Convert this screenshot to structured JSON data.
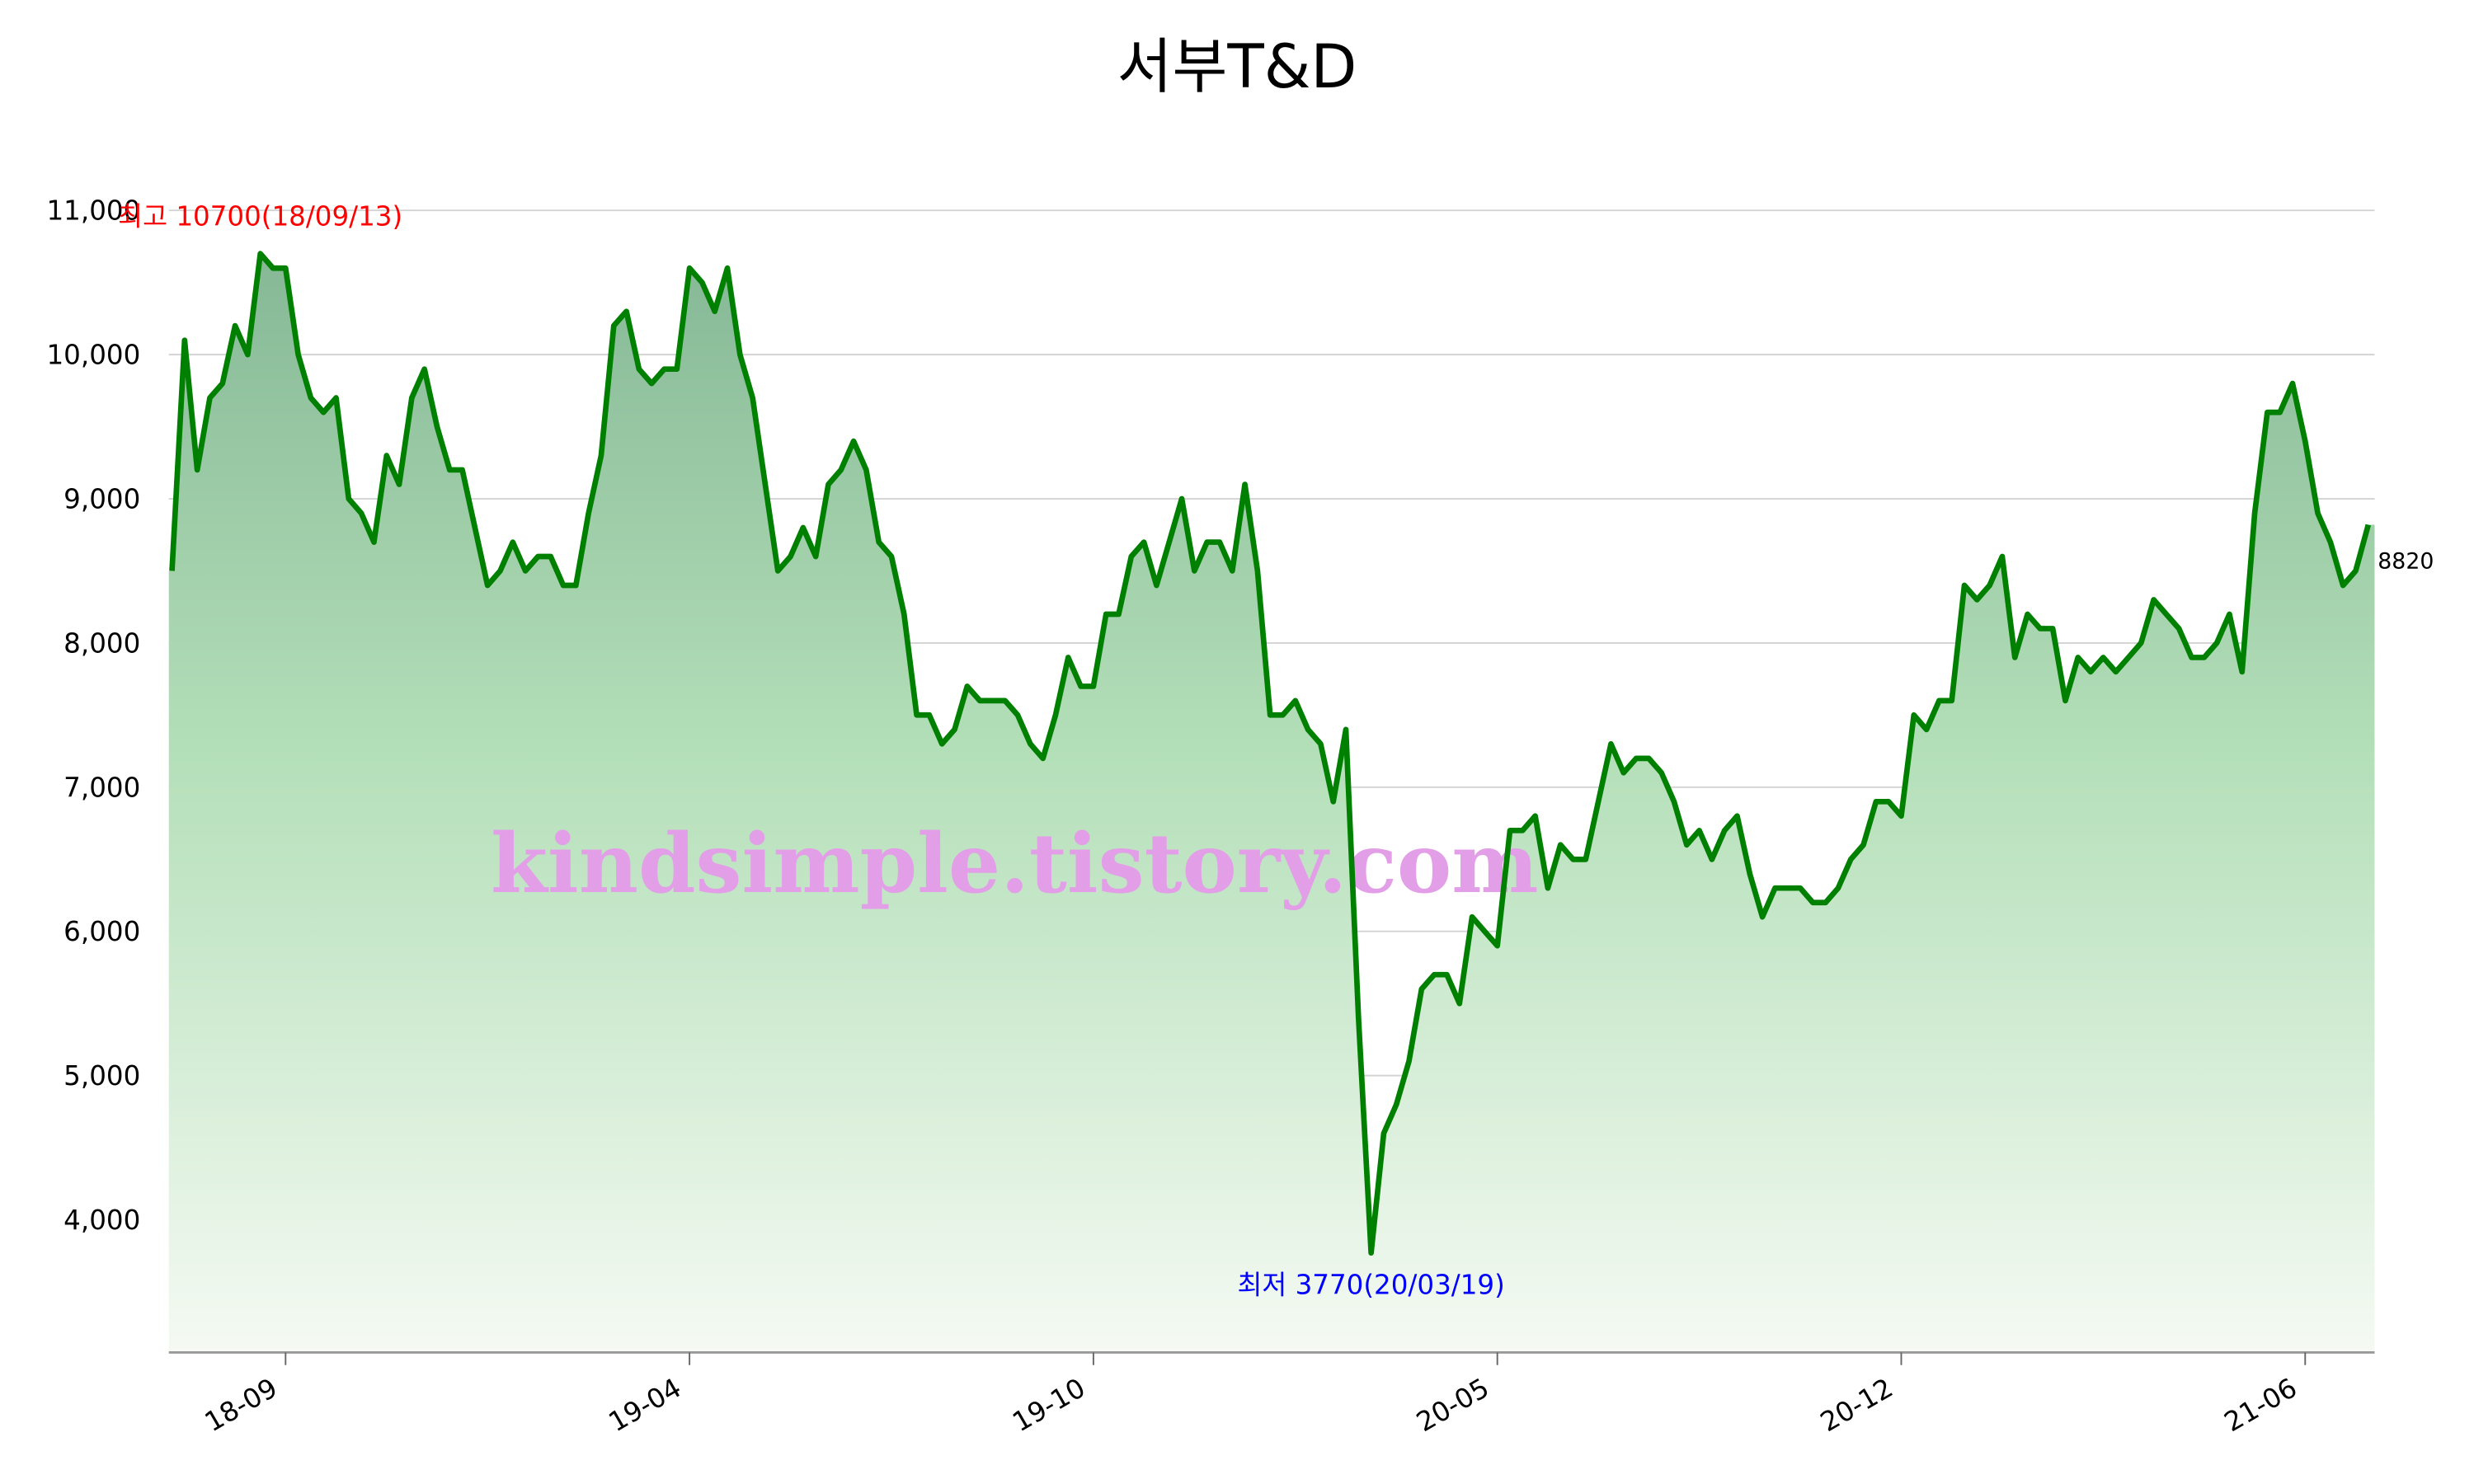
{
  "chart_data": {
    "type": "area-line",
    "title": "서부T&D",
    "watermark": "kindsimple.tistory.com",
    "max_label": "최고 10700(18/09/13)",
    "min_label": "최저 3770(20/03/19)",
    "max_color": "#ff0000",
    "min_color": "#0000ff",
    "categories": [
      null,
      null,
      null,
      null,
      null,
      null,
      null,
      null,
      null,
      "18-09",
      null,
      null,
      null,
      null,
      null,
      null,
      null,
      null,
      null,
      null,
      null,
      null,
      null,
      null,
      null,
      null,
      null,
      null,
      null,
      null,
      null,
      null,
      null,
      null,
      null,
      null,
      null,
      null,
      null,
      null,
      null,
      "19-04",
      null,
      null,
      null,
      null,
      null,
      null,
      null,
      null,
      null,
      null,
      null,
      null,
      null,
      null,
      null,
      null,
      null,
      null,
      null,
      null,
      null,
      null,
      null,
      null,
      null,
      null,
      null,
      null,
      null,
      null,
      null,
      "19-10",
      null,
      null,
      null,
      null,
      null,
      null,
      null,
      null,
      null,
      null,
      null,
      null,
      null,
      null,
      null,
      null,
      null,
      null,
      null,
      null,
      null,
      null,
      null,
      null,
      null,
      null,
      null,
      null,
      null,
      null,
      null,
      "20-05",
      null,
      null,
      null,
      null,
      null,
      null,
      null,
      null,
      null,
      null,
      null,
      null,
      null,
      null,
      null,
      null,
      null,
      null,
      null,
      null,
      null,
      null,
      null,
      null,
      null,
      null,
      null,
      null,
      null,
      null,
      null,
      "20-12",
      null,
      null,
      null,
      null,
      null,
      null,
      null,
      null,
      null,
      null,
      null,
      null,
      null,
      null,
      null,
      null,
      null,
      null,
      null,
      null,
      null,
      null,
      null,
      null,
      null,
      null,
      null,
      null,
      null,
      null,
      null,
      "21-06",
      null,
      null,
      null,
      null,
      null
    ],
    "series": [
      {
        "color": "#008000",
        "values": [
          8500,
          10100,
          9200,
          9700,
          9800,
          10200,
          10000,
          10700,
          10600,
          10600,
          10000,
          9700,
          9600,
          9700,
          9000,
          8900,
          8700,
          9300,
          9100,
          9700,
          9900,
          9500,
          9200,
          9200,
          8800,
          8400,
          8500,
          8700,
          8500,
          8600,
          8600,
          8400,
          8400,
          8900,
          9300,
          10200,
          10300,
          9900,
          9800,
          9900,
          9900,
          10600,
          10500,
          10300,
          10600,
          10000,
          9700,
          9100,
          8500,
          8600,
          8800,
          8600,
          9100,
          9200,
          9400,
          9200,
          8700,
          8600,
          8200,
          7500,
          7500,
          7300,
          7400,
          7700,
          7600,
          7600,
          7600,
          7500,
          7300,
          7200,
          7500,
          7900,
          7700,
          7700,
          8200,
          8200,
          8600,
          8700,
          8400,
          8700,
          9000,
          8500,
          8700,
          8700,
          8500,
          9100,
          8500,
          7500,
          7500,
          7600,
          7400,
          7300,
          6900,
          7400,
          5400,
          3770,
          4600,
          4800,
          5100,
          5600,
          5700,
          5700,
          5500,
          6100,
          6000,
          5900,
          6700,
          6700,
          6800,
          6300,
          6600,
          6500,
          6500,
          6900,
          7300,
          7100,
          7200,
          7200,
          7100,
          6900,
          6600,
          6700,
          6500,
          6700,
          6800,
          6400,
          6100,
          6300,
          6300,
          6300,
          6200,
          6200,
          6300,
          6500,
          6600,
          6900,
          6900,
          6800,
          7500,
          7400,
          7600,
          7600,
          8400,
          8300,
          8400,
          8600,
          7900,
          8200,
          8100,
          8100,
          7600,
          7900,
          7800,
          7900,
          7800,
          7900,
          8000,
          8300,
          8200,
          8100,
          7900,
          7900,
          8000,
          8200,
          7800,
          8900,
          9600,
          9600,
          9800,
          9400,
          8900,
          8700,
          8400,
          8500,
          8820
        ]
      }
    ],
    "ylim": [
      3080,
      11000
    ],
    "yticks": [
      {
        "value": 4000,
        "label": "4,000"
      },
      {
        "value": 5000,
        "label": "5,000"
      },
      {
        "value": 6000,
        "label": "6,000"
      },
      {
        "value": 7000,
        "label": "7,000"
      },
      {
        "value": 8000,
        "label": "8,000"
      },
      {
        "value": 9000,
        "label": "9,000"
      },
      {
        "value": 10000,
        "label": "10,000"
      },
      {
        "value": 11000,
        "label": "11,000"
      }
    ],
    "grid": true
  }
}
